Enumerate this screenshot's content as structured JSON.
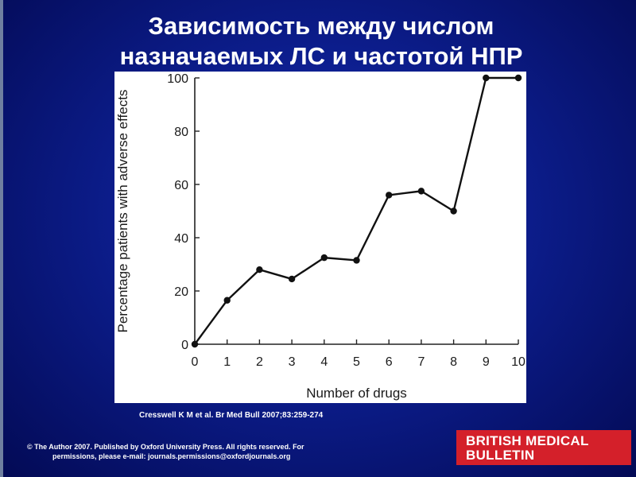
{
  "slide": {
    "title_line1": "Зависимость между числом",
    "title_line2": "назначаемых ЛС и частотой НПР",
    "citation": "Cresswell K M et al. Br Med Bull 2007;83:259-274",
    "copyright_line1": "© The Author 2007. Published by Oxford University Press. All rights reserved. For",
    "copyright_line2": "permissions, please e-mail: journals.permissions@oxfordjournals.org",
    "journal_logo_line1": "BRITISH MEDICAL",
    "journal_logo_line2": "BULLETIN",
    "colors": {
      "background": "#0c1d8c",
      "logo": "#d4202a",
      "line": "#111111"
    }
  },
  "chart_data": {
    "type": "line",
    "title": "",
    "xlabel": "Number of drugs",
    "ylabel": "Percentage patients with adverse effects",
    "x": [
      0,
      1,
      2,
      3,
      4,
      5,
      6,
      7,
      8,
      9,
      10
    ],
    "series": [
      {
        "values": [
          0,
          16.5,
          28,
          24.5,
          32.5,
          31.5,
          56,
          57.5,
          50,
          100,
          100
        ]
      }
    ],
    "xlim": [
      0,
      10
    ],
    "ylim": [
      0,
      100
    ],
    "xticks": [
      "0",
      "1",
      "2",
      "3",
      "4",
      "5",
      "6",
      "7",
      "8",
      "9",
      "10"
    ],
    "yticks": [
      "0",
      "20",
      "40",
      "60",
      "80",
      "100"
    ],
    "grid": false,
    "legend": "none"
  }
}
